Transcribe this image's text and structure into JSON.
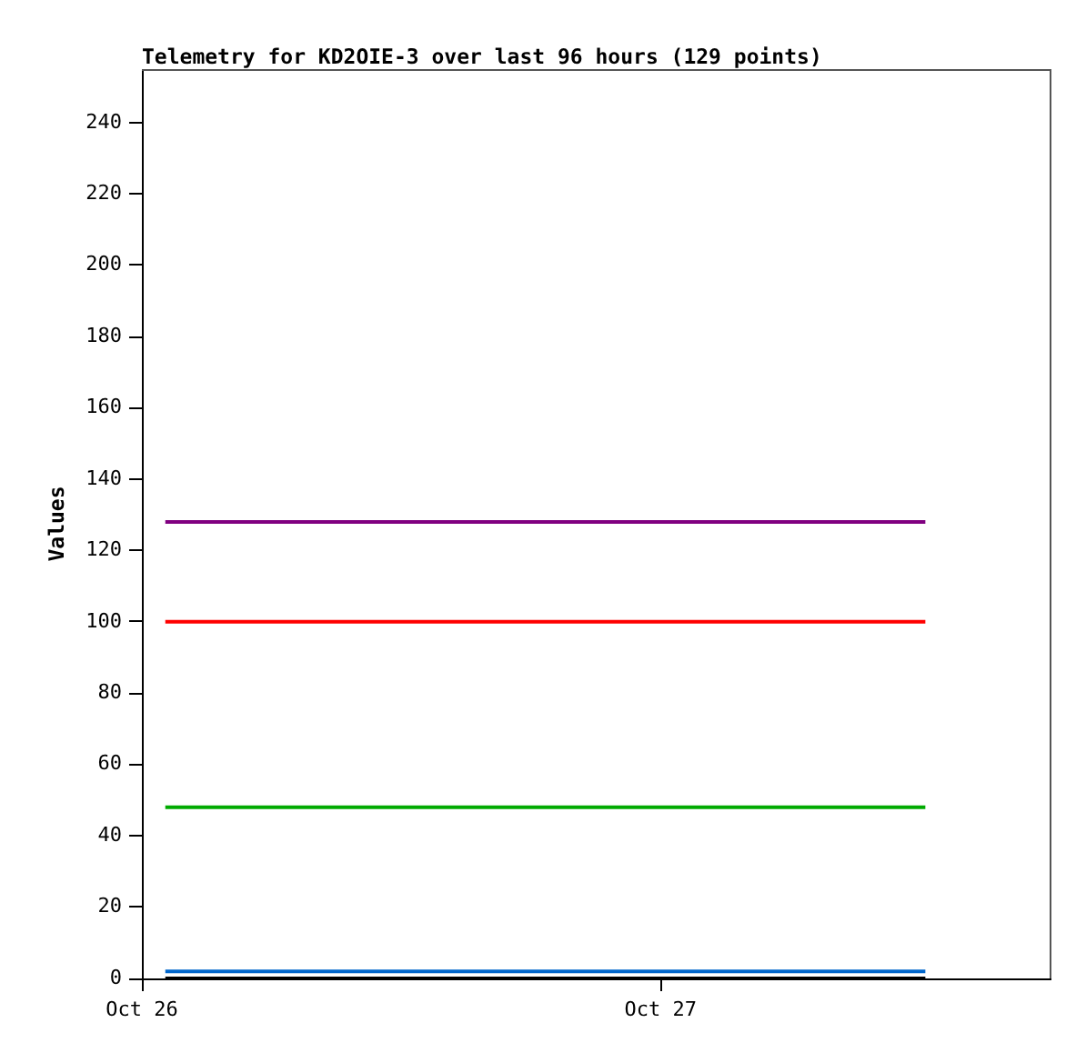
{
  "chart_data": {
    "type": "line",
    "title": "Telemetry for KD2OIE-3 over last 96 hours (129 points)",
    "ylabel": "Values",
    "x": [
      "--10-26T01:05",
      "--10-27T12:15"
    ],
    "series": [
      {
        "color": "#800080",
        "values": [
          128,
          128
        ]
      },
      {
        "color": "#ff0000",
        "values": [
          100,
          100
        ]
      },
      {
        "color": "#00aa00",
        "values": [
          48,
          48
        ]
      },
      {
        "color": "#0066cc",
        "values": [
          2,
          2
        ]
      },
      {
        "color": "#000000",
        "values": [
          0,
          0
        ]
      }
    ],
    "xlim": [
      "--10-26T00:00",
      "--10-27T18:00"
    ],
    "xticks": [
      {
        "value": "--10-26",
        "label": "Oct 26"
      },
      {
        "value": "--10-27",
        "label": "Oct 27"
      }
    ],
    "ylim": [
      0,
      255
    ],
    "yticks": [
      0,
      20,
      40,
      60,
      80,
      100,
      120,
      140,
      160,
      180,
      200,
      220,
      240
    ],
    "grid": false,
    "legend": false,
    "marker": "none",
    "line_style": "solid"
  }
}
